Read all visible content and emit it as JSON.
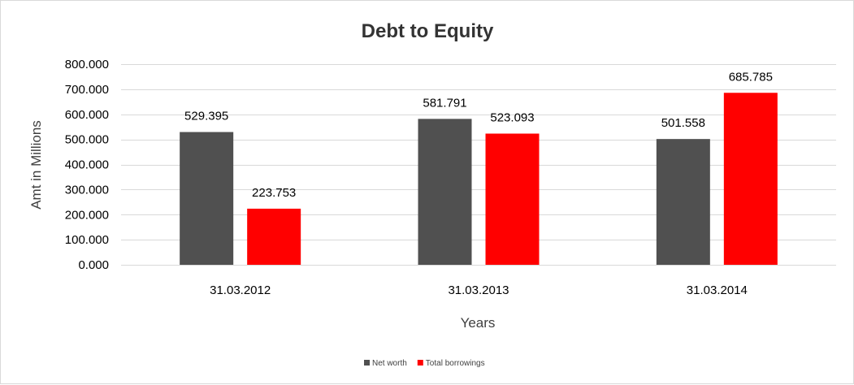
{
  "colors": {
    "net_worth": "#505050",
    "total_borrowings": "#ff0000",
    "gridline": "#d9d9d9",
    "border": "#d9d9d9"
  },
  "chart_data": {
    "type": "bar",
    "title": "Debt to Equity",
    "xlabel": "Years",
    "ylabel": "Amt in Millions",
    "categories": [
      "31.03.2012",
      "31.03.2013",
      "31.03.2014"
    ],
    "series": [
      {
        "name": "Net worth",
        "color": "#505050",
        "values": [
          529.395,
          581.791,
          501.558
        ],
        "labels": [
          "529.395",
          "581.791",
          "501.558"
        ]
      },
      {
        "name": "Total borrowings",
        "color": "#ff0000",
        "values": [
          223.753,
          523.093,
          685.785
        ],
        "labels": [
          "223.753",
          "523.093",
          "685.785"
        ]
      }
    ],
    "ylim": [
      0,
      800
    ],
    "yticks": [
      0,
      100,
      200,
      300,
      400,
      500,
      600,
      700,
      800
    ],
    "ytick_labels": [
      "0.000",
      "100.000",
      "200.000",
      "300.000",
      "400.000",
      "500.000",
      "600.000",
      "700.000",
      "800.000"
    ],
    "grid": true,
    "legend_position": "bottom"
  }
}
